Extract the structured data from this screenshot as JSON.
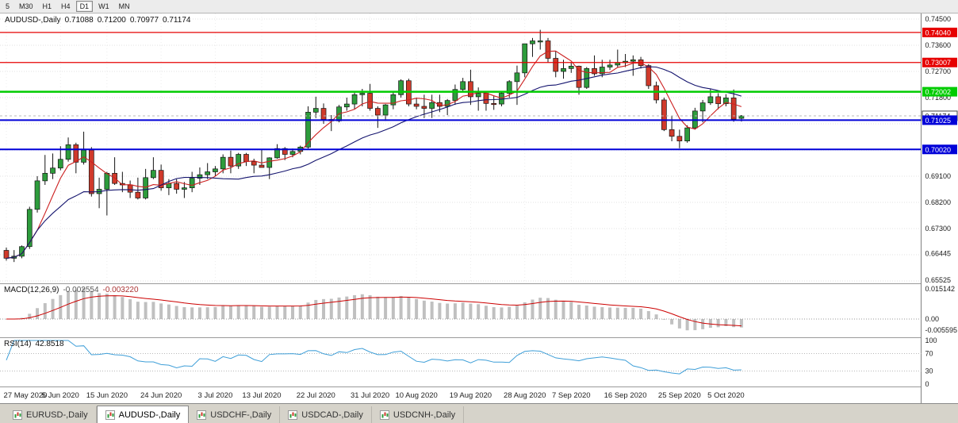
{
  "colors": {
    "candle_up": "#2d9c3c",
    "candle_down": "#d03a2b",
    "candle_outline": "#141414",
    "ma_fast": "#cc2020",
    "ma_slow": "#14146e",
    "grid": "#e0e0e0",
    "macd_hist": "#c0c0c0",
    "macd_signal": "#cc0000",
    "rsi_line": "#3f9fd8",
    "axis_text": "#1a1a1a"
  },
  "toolbar": {
    "timeframes": [
      {
        "label": "5",
        "active": false
      },
      {
        "label": "M30",
        "active": false
      },
      {
        "label": "H1",
        "active": false
      },
      {
        "label": "H4",
        "active": false
      },
      {
        "label": "D1",
        "active": true
      },
      {
        "label": "W1",
        "active": false
      },
      {
        "label": "MN",
        "active": false
      }
    ]
  },
  "header": {
    "symbol": "AUDUSD-,Daily",
    "open": "0.71088",
    "high": "0.71200",
    "low": "0.70977",
    "close": "0.71174"
  },
  "tabs": [
    {
      "label": "EURUSD-,Daily",
      "active": false
    },
    {
      "label": "AUDUSD-,Daily",
      "active": true
    },
    {
      "label": "USDCHF-,Daily",
      "active": false
    },
    {
      "label": "USDCAD-,Daily",
      "active": false
    },
    {
      "label": "USDCNH-,Daily",
      "active": false
    }
  ],
  "chart_data": {
    "type": "candlestick",
    "symbol": "AUDUSD-",
    "timeframe": "Daily",
    "y_axis": {
      "range": [
        0.6545,
        0.7469
      ],
      "grid_step": 0.009,
      "labels": [
        {
          "text": "0.74500",
          "price": 0.745
        },
        {
          "text": "0.73600",
          "price": 0.736
        },
        {
          "text": "0.72700",
          "price": 0.727
        },
        {
          "text": "0.71800",
          "price": 0.718
        },
        {
          "text": "0.69100",
          "price": 0.691
        },
        {
          "text": "0.68200",
          "price": 0.682
        },
        {
          "text": "0.67300",
          "price": 0.673
        },
        {
          "text": "0.66445",
          "price": 0.66445
        },
        {
          "text": "0.65525",
          "price": 0.65525
        }
      ]
    },
    "x_tick_labels": [
      "27 May 2020",
      "5 Jun 2020",
      "15 Jun 2020",
      "24 Jun 2020",
      "3 Jul 2020",
      "13 Jul 2020",
      "22 Jul 2020",
      "31 Jul 2020",
      "10 Aug 2020",
      "19 Aug 2020",
      "28 Aug 2020",
      "7 Sep 2020",
      "16 Sep 2020",
      "25 Sep 2020",
      "5 Oct 2020"
    ],
    "x_tick_indices": [
      0,
      7,
      13,
      20,
      27,
      33,
      40,
      47,
      53,
      60,
      67,
      73,
      80,
      87,
      93
    ],
    "horizontal_lines": [
      {
        "price": 0.7404,
        "label": "0.74040",
        "color": "#e60000",
        "width": 1.2
      },
      {
        "price": 0.73007,
        "label": "0.73007",
        "color": "#e60000",
        "width": 1.2
      },
      {
        "price": 0.72002,
        "label": "0.72002",
        "color": "#00cc00",
        "width": 2.5
      },
      {
        "price": 0.71025,
        "label": "0.71025",
        "color": "#0000d8",
        "width": 2
      },
      {
        "price": 0.7002,
        "label": "0.70020",
        "color": "#0000d8",
        "width": 2
      }
    ],
    "current_price": {
      "label": "0.71174",
      "price": 0.71174
    },
    "moving_averages": [
      {
        "name": "fast",
        "period": 5,
        "color": "#cc2020"
      },
      {
        "name": "slow",
        "period": 20,
        "color": "#14146e"
      }
    ],
    "indicators": [
      {
        "type": "macd",
        "label": "MACD(12,26,9)",
        "value_main": "-0.002554",
        "value_signal": "-0.003220",
        "params": [
          12,
          26,
          9
        ],
        "axis_labels": [
          "0.015142",
          "0.00",
          "-0.005595"
        ]
      },
      {
        "type": "rsi",
        "label": "RSI(14)",
        "value": "42.8518",
        "period": 14,
        "axis_labels": [
          "100",
          "70",
          "30",
          "0"
        ],
        "levels": [
          70,
          30
        ]
      }
    ],
    "candles_ohlc": [
      [
        0.6655,
        0.6665,
        0.662,
        0.6628
      ],
      [
        0.6628,
        0.6656,
        0.6615,
        0.6635
      ],
      [
        0.6635,
        0.6672,
        0.6628,
        0.6668
      ],
      [
        0.6668,
        0.6805,
        0.666,
        0.6796
      ],
      [
        0.6796,
        0.691,
        0.6785,
        0.6894
      ],
      [
        0.6894,
        0.6983,
        0.688,
        0.692
      ],
      [
        0.692,
        0.6988,
        0.69,
        0.6938
      ],
      [
        0.6938,
        0.7013,
        0.693,
        0.6968
      ],
      [
        0.6968,
        0.7043,
        0.696,
        0.7018
      ],
      [
        0.7018,
        0.7025,
        0.692,
        0.6958
      ],
      [
        0.6958,
        0.7063,
        0.695,
        0.7
      ],
      [
        0.7,
        0.701,
        0.684,
        0.685
      ],
      [
        0.685,
        0.6905,
        0.68,
        0.6865
      ],
      [
        0.6865,
        0.6925,
        0.6775,
        0.692
      ],
      [
        0.692,
        0.6975,
        0.688,
        0.6885
      ],
      [
        0.6885,
        0.6925,
        0.6855,
        0.688
      ],
      [
        0.688,
        0.6895,
        0.6835,
        0.6855
      ],
      [
        0.6855,
        0.6905,
        0.683,
        0.6835
      ],
      [
        0.6835,
        0.6935,
        0.683,
        0.6905
      ],
      [
        0.6905,
        0.6975,
        0.69,
        0.693
      ],
      [
        0.693,
        0.695,
        0.686,
        0.687
      ],
      [
        0.687,
        0.69,
        0.6845,
        0.6885
      ],
      [
        0.6885,
        0.69,
        0.685,
        0.6865
      ],
      [
        0.6865,
        0.689,
        0.6835,
        0.687
      ],
      [
        0.687,
        0.6925,
        0.6855,
        0.6903
      ],
      [
        0.6903,
        0.694,
        0.688,
        0.6915
      ],
      [
        0.6915,
        0.6955,
        0.69,
        0.6925
      ],
      [
        0.6925,
        0.6945,
        0.691,
        0.6935
      ],
      [
        0.6935,
        0.6985,
        0.692,
        0.6975
      ],
      [
        0.6975,
        0.6998,
        0.692,
        0.6945
      ],
      [
        0.6945,
        0.699,
        0.6935,
        0.6985
      ],
      [
        0.6985,
        0.699,
        0.6945,
        0.696
      ],
      [
        0.696,
        0.697,
        0.692,
        0.6948
      ],
      [
        0.6948,
        0.7,
        0.694,
        0.694
      ],
      [
        0.694,
        0.6975,
        0.69,
        0.6973
      ],
      [
        0.6973,
        0.702,
        0.697,
        0.7005
      ],
      [
        0.7005,
        0.701,
        0.6965,
        0.6985
      ],
      [
        0.6985,
        0.7005,
        0.6975,
        0.6995
      ],
      [
        0.6995,
        0.7015,
        0.6985,
        0.701
      ],
      [
        0.701,
        0.715,
        0.7005,
        0.713
      ],
      [
        0.713,
        0.7183,
        0.711,
        0.7143
      ],
      [
        0.7143,
        0.716,
        0.709,
        0.7105
      ],
      [
        0.7105,
        0.712,
        0.7065,
        0.71
      ],
      [
        0.71,
        0.7155,
        0.7095,
        0.7148
      ],
      [
        0.7148,
        0.718,
        0.7135,
        0.7158
      ],
      [
        0.7158,
        0.7197,
        0.714,
        0.719
      ],
      [
        0.719,
        0.721,
        0.715,
        0.7195
      ],
      [
        0.7195,
        0.7227,
        0.7135,
        0.7143
      ],
      [
        0.7143,
        0.715,
        0.7076,
        0.712
      ],
      [
        0.712,
        0.7158,
        0.71,
        0.7155
      ],
      [
        0.7155,
        0.72,
        0.714,
        0.719
      ],
      [
        0.719,
        0.7243,
        0.718,
        0.7238
      ],
      [
        0.7238,
        0.7245,
        0.715,
        0.7158
      ],
      [
        0.7158,
        0.718,
        0.714,
        0.715
      ],
      [
        0.715,
        0.719,
        0.711,
        0.7143
      ],
      [
        0.7143,
        0.719,
        0.711,
        0.7163
      ],
      [
        0.7163,
        0.719,
        0.713,
        0.715
      ],
      [
        0.715,
        0.7175,
        0.712,
        0.717
      ],
      [
        0.717,
        0.7225,
        0.7155,
        0.7208
      ],
      [
        0.7208,
        0.7248,
        0.72,
        0.7235
      ],
      [
        0.7235,
        0.7276,
        0.7155,
        0.7183
      ],
      [
        0.7183,
        0.7215,
        0.7135,
        0.7195
      ],
      [
        0.7195,
        0.72,
        0.7135,
        0.716
      ],
      [
        0.716,
        0.7185,
        0.7138,
        0.7158
      ],
      [
        0.7158,
        0.7203,
        0.715,
        0.7195
      ],
      [
        0.7195,
        0.724,
        0.718,
        0.7235
      ],
      [
        0.7235,
        0.729,
        0.7155,
        0.7265
      ],
      [
        0.7265,
        0.7365,
        0.725,
        0.7365
      ],
      [
        0.7365,
        0.7385,
        0.732,
        0.7375
      ],
      [
        0.7375,
        0.7413,
        0.7345,
        0.7375
      ],
      [
        0.7375,
        0.7385,
        0.73,
        0.7315
      ],
      [
        0.7315,
        0.734,
        0.725,
        0.727
      ],
      [
        0.727,
        0.731,
        0.7245,
        0.728
      ],
      [
        0.728,
        0.73,
        0.7265,
        0.7288
      ],
      [
        0.7288,
        0.729,
        0.719,
        0.7215
      ],
      [
        0.7215,
        0.7285,
        0.721,
        0.728
      ],
      [
        0.728,
        0.7325,
        0.7255,
        0.7262
      ],
      [
        0.7262,
        0.731,
        0.725,
        0.7285
      ],
      [
        0.7285,
        0.731,
        0.7275,
        0.7292
      ],
      [
        0.7292,
        0.7345,
        0.7285,
        0.73
      ],
      [
        0.73,
        0.733,
        0.7285,
        0.7305
      ],
      [
        0.7305,
        0.7325,
        0.7255,
        0.731
      ],
      [
        0.731,
        0.732,
        0.728,
        0.729
      ],
      [
        0.729,
        0.7295,
        0.721,
        0.7221
      ],
      [
        0.7221,
        0.7235,
        0.716,
        0.7172
      ],
      [
        0.7172,
        0.718,
        0.7065,
        0.707
      ],
      [
        0.707,
        0.7118,
        0.703,
        0.7047
      ],
      [
        0.7047,
        0.707,
        0.7006,
        0.7031
      ],
      [
        0.7031,
        0.7085,
        0.7025,
        0.7076
      ],
      [
        0.7076,
        0.7145,
        0.707,
        0.7134
      ],
      [
        0.7134,
        0.7172,
        0.7095,
        0.7162
      ],
      [
        0.7162,
        0.721,
        0.7155,
        0.7183
      ],
      [
        0.7183,
        0.7195,
        0.714,
        0.7159
      ],
      [
        0.7159,
        0.7192,
        0.715,
        0.7179
      ],
      [
        0.7179,
        0.7208,
        0.7097,
        0.7106
      ],
      [
        0.71088,
        0.712,
        0.70977,
        0.71174
      ]
    ]
  }
}
